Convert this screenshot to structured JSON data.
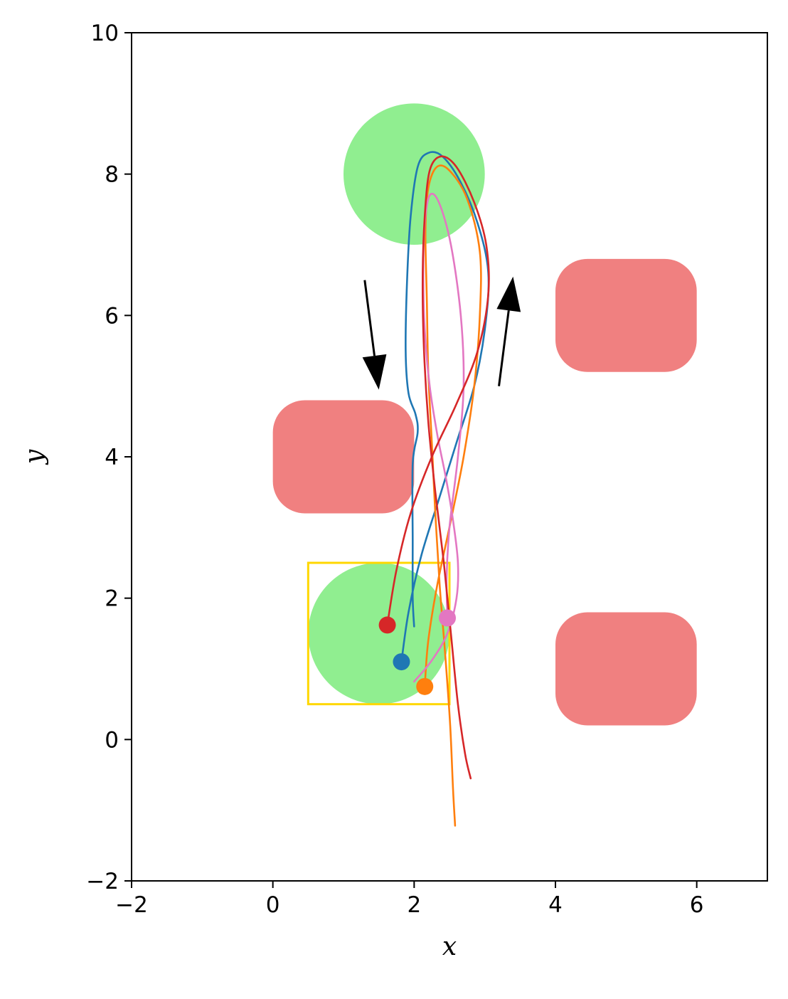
{
  "chart_data": {
    "type": "scatter",
    "xlabel": "x",
    "ylabel": "y",
    "xlim": [
      -2,
      7
    ],
    "ylim": [
      -2,
      10
    ],
    "xticks": [
      {
        "value": -2,
        "label": "−2"
      },
      {
        "value": 0,
        "label": "0"
      },
      {
        "value": 2,
        "label": "2"
      },
      {
        "value": 4,
        "label": "4"
      },
      {
        "value": 6,
        "label": "6"
      }
    ],
    "yticks": [
      {
        "value": -2,
        "label": "−2"
      },
      {
        "value": 0,
        "label": "0"
      },
      {
        "value": 2,
        "label": "2"
      },
      {
        "value": 4,
        "label": "4"
      },
      {
        "value": 6,
        "label": "6"
      },
      {
        "value": 8,
        "label": "8"
      },
      {
        "value": 10,
        "label": "10"
      }
    ],
    "grid": false,
    "goal_regions": [
      {
        "cx": 2.0,
        "cy": 8.0,
        "r": 1.0,
        "color": "#90ee90"
      },
      {
        "cx": 1.5,
        "cy": 1.5,
        "r": 1.0,
        "color": "#90ee90"
      }
    ],
    "start_box": {
      "x0": 0.5,
      "y0": 0.5,
      "x1": 2.5,
      "y1": 2.5,
      "color": "#ffd700"
    },
    "obstacles": [
      {
        "cx": 1.0,
        "cy": 4.0,
        "half_w": 1.0,
        "half_h": 0.8,
        "color": "#f08080"
      },
      {
        "cx": 5.0,
        "cy": 6.0,
        "half_w": 1.0,
        "half_h": 0.8,
        "color": "#f08080"
      },
      {
        "cx": 5.0,
        "cy": 1.0,
        "half_w": 1.0,
        "half_h": 0.8,
        "color": "#f08080"
      }
    ],
    "arrows": [
      {
        "from": [
          1.3,
          6.5
        ],
        "to": [
          1.5,
          4.95
        ]
      },
      {
        "from": [
          3.2,
          5.0
        ],
        "to": [
          3.4,
          6.55
        ]
      }
    ],
    "series": [
      {
        "color": "#1f77b4",
        "start": [
          1.82,
          1.1
        ],
        "points": [
          [
            1.82,
            1.1
          ],
          [
            1.92,
            1.8
          ],
          [
            2.1,
            2.6
          ],
          [
            2.35,
            3.4
          ],
          [
            2.6,
            4.2
          ],
          [
            2.85,
            5.0
          ],
          [
            3.0,
            5.8
          ],
          [
            3.05,
            6.6
          ],
          [
            2.9,
            7.3
          ],
          [
            2.65,
            7.9
          ],
          [
            2.4,
            8.25
          ],
          [
            2.2,
            8.3
          ],
          [
            2.05,
            8.1
          ],
          [
            1.95,
            7.4
          ],
          [
            1.9,
            6.5
          ],
          [
            1.88,
            5.5
          ],
          [
            1.92,
            4.9
          ],
          [
            2.02,
            4.6
          ],
          [
            2.05,
            4.35
          ],
          [
            1.98,
            3.9
          ],
          [
            1.98,
            2.8
          ],
          [
            1.98,
            2.0
          ],
          [
            2.0,
            1.6
          ]
        ]
      },
      {
        "color": "#ff7f0e",
        "start": [
          2.15,
          0.75
        ],
        "points": [
          [
            2.15,
            0.75
          ],
          [
            2.2,
            1.4
          ],
          [
            2.33,
            2.2
          ],
          [
            2.52,
            3.1
          ],
          [
            2.7,
            4.0
          ],
          [
            2.85,
            5.0
          ],
          [
            2.93,
            6.0
          ],
          [
            2.93,
            6.9
          ],
          [
            2.75,
            7.65
          ],
          [
            2.5,
            8.05
          ],
          [
            2.32,
            8.1
          ],
          [
            2.2,
            7.8
          ],
          [
            2.16,
            7.2
          ],
          [
            2.18,
            6.2
          ],
          [
            2.2,
            5.2
          ],
          [
            2.25,
            4.2
          ],
          [
            2.3,
            3.2
          ],
          [
            2.36,
            2.2
          ],
          [
            2.44,
            1.2
          ],
          [
            2.51,
            0.2
          ],
          [
            2.55,
            -0.7
          ],
          [
            2.58,
            -1.22
          ]
        ]
      },
      {
        "color": "#e377c2",
        "start": [
          2.47,
          1.72
        ],
        "points": [
          [
            2.0,
            0.82
          ],
          [
            2.25,
            1.12
          ],
          [
            2.47,
            1.5
          ],
          [
            2.6,
            2.0
          ],
          [
            2.62,
            2.5
          ],
          [
            2.55,
            3.1
          ],
          [
            2.45,
            3.7
          ],
          [
            2.33,
            4.3
          ],
          [
            2.22,
            5.0
          ],
          [
            2.15,
            5.8
          ],
          [
            2.13,
            6.6
          ],
          [
            2.15,
            7.3
          ],
          [
            2.22,
            7.7
          ],
          [
            2.35,
            7.6
          ],
          [
            2.52,
            7.0
          ],
          [
            2.66,
            6.0
          ],
          [
            2.7,
            5.0
          ],
          [
            2.62,
            4.0
          ],
          [
            2.5,
            3.0
          ],
          [
            2.46,
            2.3
          ],
          [
            2.47,
            1.72
          ]
        ]
      },
      {
        "color": "#d62728",
        "start": [
          1.62,
          1.62
        ],
        "points": [
          [
            1.62,
            1.62
          ],
          [
            1.75,
            2.4
          ],
          [
            1.95,
            3.2
          ],
          [
            2.25,
            4.0
          ],
          [
            2.6,
            4.75
          ],
          [
            2.9,
            5.5
          ],
          [
            3.05,
            6.3
          ],
          [
            3.02,
            7.0
          ],
          [
            2.85,
            7.6
          ],
          [
            2.6,
            8.1
          ],
          [
            2.38,
            8.25
          ],
          [
            2.22,
            8.05
          ],
          [
            2.15,
            7.4
          ],
          [
            2.12,
            6.5
          ],
          [
            2.14,
            5.5
          ],
          [
            2.2,
            4.5
          ],
          [
            2.3,
            3.5
          ],
          [
            2.42,
            2.5
          ],
          [
            2.52,
            1.5
          ],
          [
            2.62,
            0.5
          ],
          [
            2.72,
            -0.2
          ],
          [
            2.8,
            -0.55
          ]
        ]
      }
    ]
  }
}
